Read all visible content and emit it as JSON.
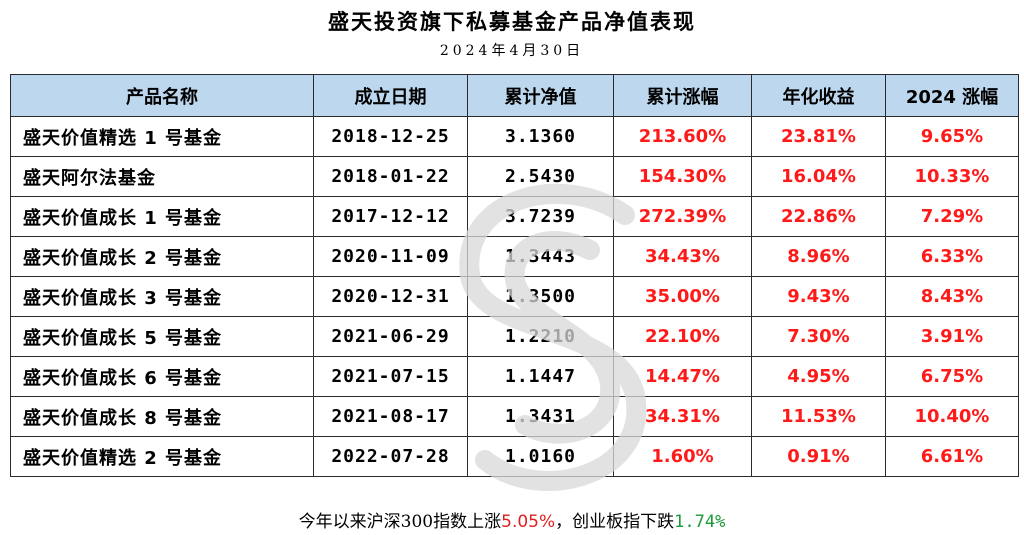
{
  "title": "盛天投资旗下私募基金产品净值表现",
  "date": "2024年4月30日",
  "colors": {
    "header_bg": "#bdd7ee",
    "positive": "#ff1a1a",
    "negative_index": "#1a9a3a"
  },
  "table": {
    "headers": [
      "产品名称",
      "成立日期",
      "累计净值",
      "累计涨幅",
      "年化收益",
      "2024 涨幅"
    ],
    "rows": [
      [
        "盛天价值精选 1 号基金",
        "2018-12-25",
        "3.1360",
        "213.60%",
        "23.81%",
        "9.65%"
      ],
      [
        "盛天阿尔法基金",
        "2018-01-22",
        "2.5430",
        "154.30%",
        "16.04%",
        "10.33%"
      ],
      [
        "盛天价值成长 1 号基金",
        "2017-12-12",
        "3.7239",
        "272.39%",
        "22.86%",
        "7.29%"
      ],
      [
        "盛天价值成长 2 号基金",
        "2020-11-09",
        "1.3443",
        "34.43%",
        "8.96%",
        "6.33%"
      ],
      [
        "盛天价值成长 3 号基金",
        "2020-12-31",
        "1.3500",
        "35.00%",
        "9.43%",
        "8.43%"
      ],
      [
        "盛天价值成长 5 号基金",
        "2021-06-29",
        "1.2210",
        "22.10%",
        "7.30%",
        "3.91%"
      ],
      [
        "盛天价值成长 6 号基金",
        "2021-07-15",
        "1.1447",
        "14.47%",
        "4.95%",
        "6.75%"
      ],
      [
        "盛天价值成长 8 号基金",
        "2021-08-17",
        "1.3431",
        "34.31%",
        "11.53%",
        "10.40%"
      ],
      [
        "盛天价值精选 2 号基金",
        "2022-07-28",
        "1.0160",
        "1.60%",
        "0.91%",
        "6.61%"
      ]
    ]
  },
  "footer": {
    "prefix": "今年以来沪深300指数上涨",
    "csi300_change": "5.05%",
    "middle": "，创业板指下跌",
    "chinext_change": "1.74%"
  }
}
